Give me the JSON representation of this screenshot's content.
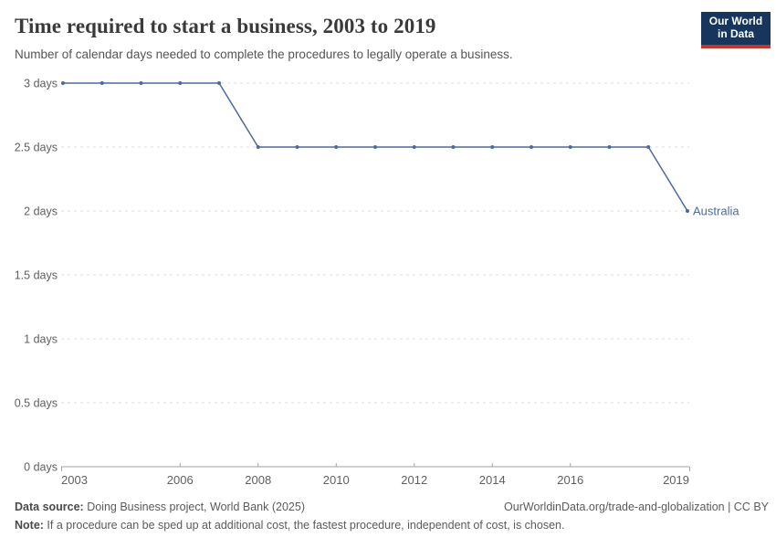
{
  "header": {
    "title": "Time required to start a business, 2003 to 2019",
    "subtitle": "Number of calendar days needed to complete the procedures to legally operate a business."
  },
  "logo": {
    "line1": "Our World",
    "line2": "in Data",
    "bg_color": "#17365d",
    "bar_color": "#c0392b"
  },
  "chart_data": {
    "type": "line",
    "title": "Time required to start a business, 2003 to 2019",
    "x": [
      2003,
      2004,
      2005,
      2006,
      2007,
      2008,
      2009,
      2010,
      2011,
      2012,
      2013,
      2014,
      2015,
      2016,
      2017,
      2018,
      2019
    ],
    "series": [
      {
        "name": "Australia",
        "color": "#4c6a9c",
        "values": [
          3,
          3,
          3,
          3,
          3,
          2.5,
          2.5,
          2.5,
          2.5,
          2.5,
          2.5,
          2.5,
          2.5,
          2.5,
          2.5,
          2.5,
          2
        ]
      }
    ],
    "xlim": [
      2003,
      2019
    ],
    "ylim": [
      0,
      3
    ],
    "xticks": [
      2003,
      2006,
      2008,
      2010,
      2012,
      2014,
      2016,
      2019
    ],
    "yticks": [
      {
        "value": 0,
        "label": "0 days"
      },
      {
        "value": 0.5,
        "label": "0.5 days"
      },
      {
        "value": 1,
        "label": "1 days"
      },
      {
        "value": 1.5,
        "label": "1.5 days"
      },
      {
        "value": 2,
        "label": "2 days"
      },
      {
        "value": 2.5,
        "label": "2.5 days"
      },
      {
        "value": 3,
        "label": "3 days"
      }
    ],
    "grid": "horizontal-dashed",
    "legend_position": "end-of-line",
    "colors": {
      "grid": "#dcdcdc",
      "axis": "#a3a3a3",
      "tick_text": "#606060"
    }
  },
  "footer": {
    "source_label": "Data source:",
    "source_text": " Doing Business project, World Bank (2025)",
    "rights": "OurWorldinData.org/trade-and-globalization | CC BY",
    "note_label": "Note:",
    "note_text": " If a procedure can be sped up at additional cost, the fastest procedure, independent of cost, is chosen."
  }
}
